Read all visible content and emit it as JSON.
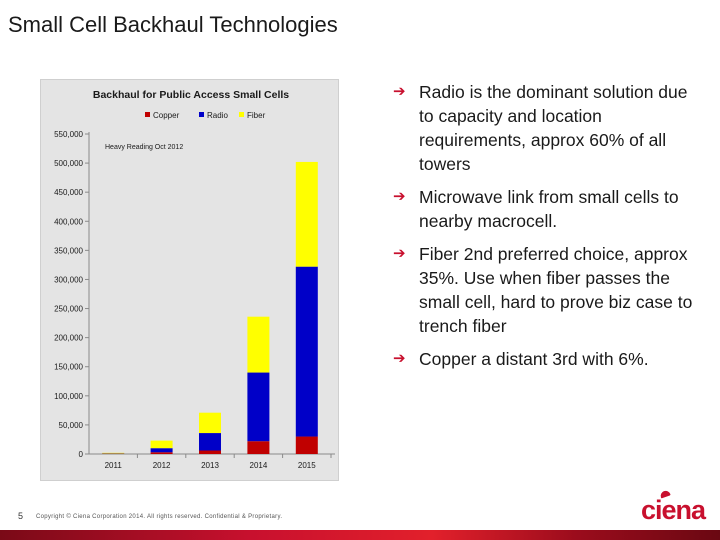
{
  "slide": {
    "title": "Small Cell Backhaul Technologies",
    "page_number": "5",
    "copyright": "Copyright © Ciena Corporation 2014. All rights reserved. Confidential & Proprietary.",
    "logo_text": "ciena"
  },
  "bullets": [
    "Radio is the dominant solution due to capacity and location requirements, approx 60% of all towers",
    "Microwave link from small cells to nearby macrocell.",
    "Fiber 2nd preferred choice, approx 35%. Use when fiber passes the small cell, hard to prove biz case to trench fiber",
    "Copper a distant 3rd with 6%."
  ],
  "colors": {
    "accent": "#c8102e",
    "copper": "#c00000",
    "radio": "#0000c8",
    "fiber": "#ffff00"
  },
  "chart_data": {
    "type": "bar",
    "stacked": true,
    "title": "Backhaul for Public Access Small Cells",
    "annotation": "Heavy Reading Oct 2012",
    "categories": [
      "2011",
      "2012",
      "2013",
      "2014",
      "2015"
    ],
    "series": [
      {
        "name": "Copper",
        "color": "#c00000",
        "values": [
          500,
          3000,
          6000,
          22000,
          30000
        ]
      },
      {
        "name": "Radio",
        "color": "#0000c8",
        "values": [
          500,
          7000,
          30000,
          118000,
          292000
        ]
      },
      {
        "name": "Fiber",
        "color": "#ffff00",
        "values": [
          1000,
          13000,
          35000,
          96000,
          180000
        ]
      }
    ],
    "ylim": [
      0,
      550000
    ],
    "yticks": [
      "0",
      "50,000",
      "100,000",
      "150,000",
      "200,000",
      "250,000",
      "300,000",
      "350,000",
      "400,000",
      "450,000",
      "500,000",
      "550,000"
    ],
    "legend_position": "top",
    "grid": false
  }
}
